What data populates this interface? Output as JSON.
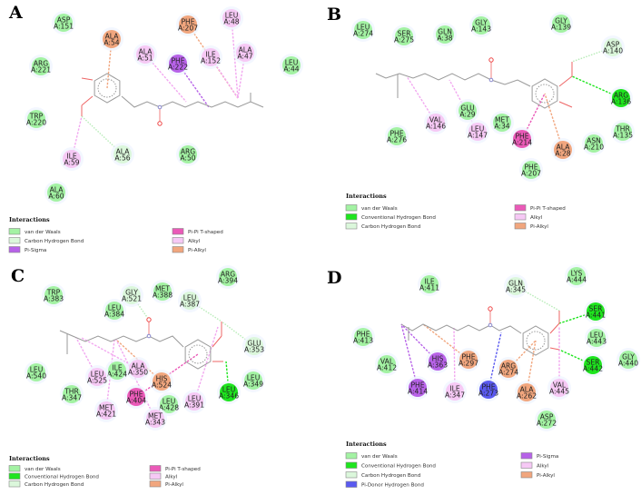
{
  "colors": {
    "vdw": "#a3f2a3",
    "conv_hbond": "#1ee51e",
    "carbon_hbond": "#dbf7db",
    "pi_sigma": "#b762e8",
    "pi_pi_t": "#ea5ab8",
    "alkyl": "#f6c9f5",
    "pi_alkyl": "#f1a67e",
    "pi_donor_hbond": "#5a5af0"
  },
  "panels": [
    {
      "label": "A",
      "legend_title": "Interactions",
      "legend": [
        {
          "label": "van der Waals",
          "type": "vdw"
        },
        {
          "label": "Carbon Hydrogen Bond",
          "type": "carbon_hbond"
        },
        {
          "label": "Pi-Sigma",
          "type": "pi_sigma"
        },
        {
          "label": "Pi-Pi T-shaped",
          "type": "pi_pi_t"
        },
        {
          "label": "Alkyl",
          "type": "alkyl"
        },
        {
          "label": "Pi-Alkyl",
          "type": "pi_alkyl"
        }
      ],
      "residues": [
        {
          "name": "ASP",
          "id": "A:151",
          "type": "vdw"
        },
        {
          "name": "ALA",
          "id": "A:54",
          "type": "pi_alkyl"
        },
        {
          "name": "ALA",
          "id": "A:51",
          "type": "alkyl"
        },
        {
          "name": "PHE",
          "id": "A:222",
          "type": "pi_sigma"
        },
        {
          "name": "PHE",
          "id": "A:207",
          "type": "pi_alkyl"
        },
        {
          "name": "ILE",
          "id": "A:152",
          "type": "alkyl"
        },
        {
          "name": "LEU",
          "id": "A:48",
          "type": "alkyl"
        },
        {
          "name": "ALA",
          "id": "A:47",
          "type": "alkyl"
        },
        {
          "name": "LEU",
          "id": "A:44",
          "type": "vdw"
        },
        {
          "name": "ARG",
          "id": "A:221",
          "type": "vdw"
        },
        {
          "name": "TRP",
          "id": "A:220",
          "type": "vdw"
        },
        {
          "name": "ILE",
          "id": "A:59",
          "type": "alkyl"
        },
        {
          "name": "ALA",
          "id": "A:56",
          "type": "carbon_hbond"
        },
        {
          "name": "ARG",
          "id": "A:50",
          "type": "vdw"
        },
        {
          "name": "ALA",
          "id": "A:60",
          "type": "vdw"
        }
      ]
    },
    {
      "label": "B",
      "legend_title": "Interactions",
      "legend": [
        {
          "label": "van der Waals",
          "type": "vdw"
        },
        {
          "label": "Conventional Hydrogen Bond",
          "type": "conv_hbond"
        },
        {
          "label": "Carbon Hydrogen Bond",
          "type": "carbon_hbond"
        },
        {
          "label": "Pi-Pi T-shaped",
          "type": "pi_pi_t"
        },
        {
          "label": "Alkyl",
          "type": "alkyl"
        },
        {
          "label": "Pi-Alkyl",
          "type": "pi_alkyl"
        }
      ],
      "residues": [
        {
          "name": "LEU",
          "id": "A:274",
          "type": "vdw"
        },
        {
          "name": "SER",
          "id": "A:275",
          "type": "vdw"
        },
        {
          "name": "GLN",
          "id": "A:38",
          "type": "vdw"
        },
        {
          "name": "GLY",
          "id": "A:143",
          "type": "vdw"
        },
        {
          "name": "GLY",
          "id": "A:139",
          "type": "vdw"
        },
        {
          "name": "ASP",
          "id": "A:140",
          "type": "carbon_hbond"
        },
        {
          "name": "ARG",
          "id": "A:136",
          "type": "conv_hbond"
        },
        {
          "name": "THR",
          "id": "A:135",
          "type": "vdw"
        },
        {
          "name": "ASN",
          "id": "A:210",
          "type": "vdw"
        },
        {
          "name": "ALA",
          "id": "A:28",
          "type": "pi_alkyl"
        },
        {
          "name": "PHE",
          "id": "A:207",
          "type": "vdw"
        },
        {
          "name": "PHE",
          "id": "A:214",
          "type": "pi_pi_t"
        },
        {
          "name": "MET",
          "id": "A:34",
          "type": "vdw"
        },
        {
          "name": "LEU",
          "id": "A:147",
          "type": "alkyl"
        },
        {
          "name": "GLU",
          "id": "A:29",
          "type": "vdw"
        },
        {
          "name": "VAL",
          "id": "A:146",
          "type": "alkyl"
        },
        {
          "name": "PHE",
          "id": "A:276",
          "type": "vdw"
        }
      ]
    },
    {
      "label": "C",
      "legend_title": "Interactions",
      "legend": [
        {
          "label": "van der Waals",
          "type": "vdw"
        },
        {
          "label": "Conventional Hydrogen Bond",
          "type": "conv_hbond"
        },
        {
          "label": "Carbon Hydrogen Bond",
          "type": "carbon_hbond"
        },
        {
          "label": "Pi-Pi T-shaped",
          "type": "pi_pi_t"
        },
        {
          "label": "Alkyl",
          "type": "alkyl"
        },
        {
          "label": "Pi-Alkyl",
          "type": "pi_alkyl"
        }
      ],
      "residues": [
        {
          "name": "ARG",
          "id": "A:394",
          "type": "vdw"
        },
        {
          "name": "TRP",
          "id": "A:383",
          "type": "vdw"
        },
        {
          "name": "GLY",
          "id": "A:521",
          "type": "carbon_hbond"
        },
        {
          "name": "MET",
          "id": "A:388",
          "type": "vdw"
        },
        {
          "name": "LEU",
          "id": "A:387",
          "type": "carbon_hbond"
        },
        {
          "name": "LEU",
          "id": "A:384",
          "type": "vdw"
        },
        {
          "name": "GLU",
          "id": "A:353",
          "type": "carbon_hbond"
        },
        {
          "name": "LEU",
          "id": "A:540",
          "type": "vdw"
        },
        {
          "name": "ILE",
          "id": "A:424",
          "type": "vdw"
        },
        {
          "name": "ALA",
          "id": "A:350",
          "type": "alkyl"
        },
        {
          "name": "LEU",
          "id": "A:525",
          "type": "alkyl"
        },
        {
          "name": "HIS",
          "id": "A:524",
          "type": "pi_alkyl"
        },
        {
          "name": "LEU",
          "id": "A:349",
          "type": "vdw"
        },
        {
          "name": "LEU",
          "id": "A:346",
          "type": "conv_hbond"
        },
        {
          "name": "THR",
          "id": "A:347",
          "type": "vdw"
        },
        {
          "name": "PHE",
          "id": "A:404",
          "type": "pi_pi_t"
        },
        {
          "name": "LEU",
          "id": "A:428",
          "type": "vdw"
        },
        {
          "name": "LEU",
          "id": "A:391",
          "type": "alkyl"
        },
        {
          "name": "MET",
          "id": "A:421",
          "type": "alkyl"
        },
        {
          "name": "MET",
          "id": "A:343",
          "type": "alkyl"
        }
      ]
    },
    {
      "label": "D",
      "legend_title": "Interactions",
      "legend": [
        {
          "label": "van der Waals",
          "type": "vdw"
        },
        {
          "label": "Conventional Hydrogen Bond",
          "type": "conv_hbond"
        },
        {
          "label": "Carbon Hydrogen Bond",
          "type": "carbon_hbond"
        },
        {
          "label": "Pi-Donor Hydrogen Bond",
          "type": "pi_donor_hbond"
        },
        {
          "label": "Pi-Sigma",
          "type": "pi_sigma"
        },
        {
          "label": "Alkyl",
          "type": "alkyl"
        },
        {
          "label": "Pi-Alkyl",
          "type": "pi_alkyl"
        }
      ],
      "residues": [
        {
          "name": "ILE",
          "id": "A:411",
          "type": "vdw"
        },
        {
          "name": "GLN",
          "id": "A:345",
          "type": "carbon_hbond"
        },
        {
          "name": "LYS",
          "id": "A:444",
          "type": "vdw"
        },
        {
          "name": "SER",
          "id": "A:441",
          "type": "conv_hbond"
        },
        {
          "name": "PHE",
          "id": "A:413",
          "type": "vdw"
        },
        {
          "name": "LEU",
          "id": "A:443",
          "type": "vdw"
        },
        {
          "name": "VAL",
          "id": "A:412",
          "type": "vdw"
        },
        {
          "name": "HIS",
          "id": "A:363",
          "type": "pi_sigma"
        },
        {
          "name": "PHE",
          "id": "A:297",
          "type": "pi_alkyl"
        },
        {
          "name": "ARG",
          "id": "A:274",
          "type": "pi_alkyl"
        },
        {
          "name": "SER",
          "id": "A:442",
          "type": "conv_hbond"
        },
        {
          "name": "GLY",
          "id": "A:440",
          "type": "vdw"
        },
        {
          "name": "PHE",
          "id": "A:414",
          "type": "pi_sigma"
        },
        {
          "name": "ILE",
          "id": "A:347",
          "type": "alkyl"
        },
        {
          "name": "PHE",
          "id": "A:273",
          "type": "pi_donor_hbond"
        },
        {
          "name": "ALA",
          "id": "A:262",
          "type": "pi_alkyl"
        },
        {
          "name": "VAL",
          "id": "A:445",
          "type": "alkyl"
        },
        {
          "name": "ASP",
          "id": "A:272",
          "type": "vdw"
        }
      ]
    }
  ]
}
